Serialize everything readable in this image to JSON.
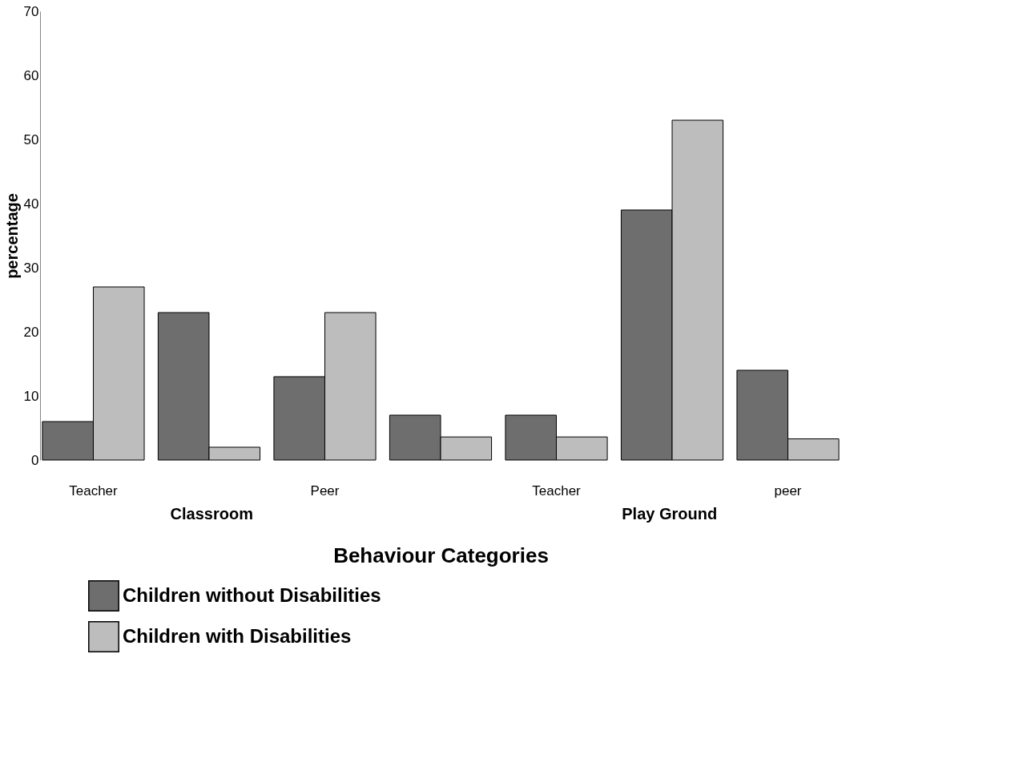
{
  "chart_data": {
    "type": "bar",
    "categories": [
      "Teacher",
      null,
      "Peer",
      null,
      "Teacher",
      null,
      "peer"
    ],
    "series": [
      {
        "name": "Children without Disabilities",
        "color": "#6e6e6e",
        "values": [
          6,
          23,
          13,
          7,
          7,
          39,
          14
        ]
      },
      {
        "name": "Children with Disabilities",
        "color": "#bdbdbd",
        "values": [
          27,
          2,
          23,
          3.6,
          3.6,
          53,
          3.3
        ]
      }
    ],
    "xlabel": "Behaviour Categories",
    "ylabel": "percentage",
    "ylim": [
      0,
      70
    ],
    "yticks": [
      0,
      10,
      20,
      30,
      40,
      50,
      60,
      70
    ],
    "annotations": [
      "Classroom",
      "Play Ground"
    ],
    "grid": false,
    "legend": "bottom left"
  }
}
